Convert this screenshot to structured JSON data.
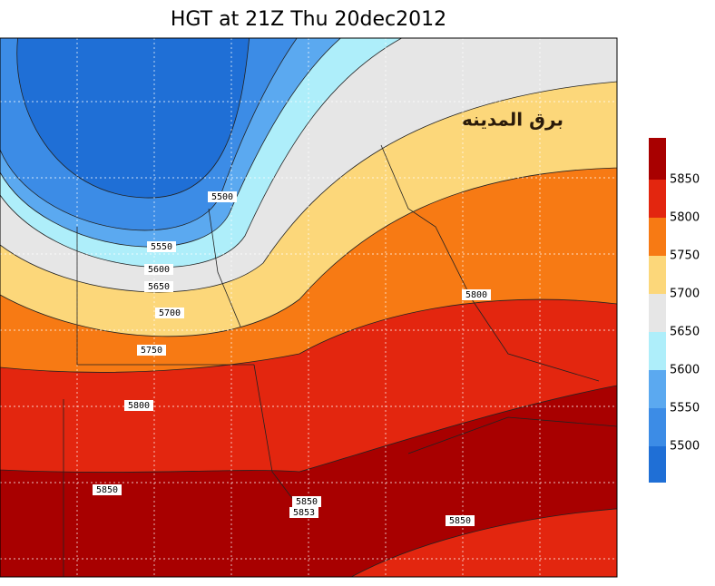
{
  "title": "HGT at 21Z Thu 20dec2012",
  "watermark": "برق المدينه",
  "colorbar": {
    "levels": [
      5500,
      5550,
      5600,
      5650,
      5700,
      5750,
      5800,
      5850
    ],
    "colors": [
      "#1f6fd6",
      "#3c8ce6",
      "#5ba9f0",
      "#aeeefa",
      "#e6e6e6",
      "#fcd77a",
      "#f77a14",
      "#e3260f",
      "#a80000"
    ]
  },
  "contour_labels": [
    5500,
    5550,
    5600,
    5650,
    5700,
    5750,
    5800,
    5850,
    5850,
    5853,
    5850,
    5800
  ]
}
